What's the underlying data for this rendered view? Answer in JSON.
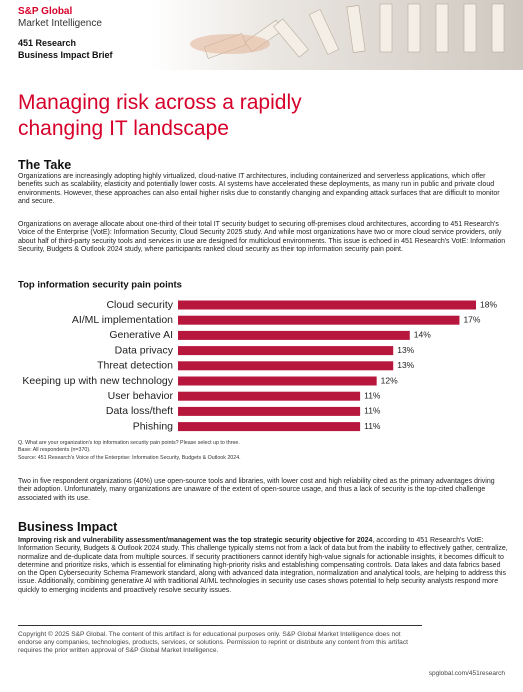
{
  "header": {
    "brand": "S&P Global",
    "division": "Market Intelligence",
    "unit": "451 Research",
    "doc_type": "Business Impact Brief"
  },
  "title": "Managing risk across a rapidly changing IT landscape",
  "the_take": {
    "heading": "The Take",
    "paragraphs": [
      "Organizations are increasingly adopting highly virtualized, cloud-native IT architectures, including containerized and serverless applications, which offer benefits such as scalability, elasticity and potentially lower costs. AI systems have accelerated these deployments, as many run in public and private cloud environments. However, these approaches can also entail higher risks due to constantly changing and expanding attack surfaces that are difficult to monitor and secure.",
      "Organizations on average allocate about one-third of their total IT security budget to securing off-premises cloud architectures, according to 451 Research's Voice of the Enterprise (VotE): Information Security, Cloud Security 2025 study. And while most organizations have two or more cloud service providers, only about half of third-party security tools and services in use are designed for multicloud environments. This issue is echoed in 451 Research's VotE: Information Security, Budgets & Outlook 2024 study, where participants ranked cloud security as their top information security pain point."
    ]
  },
  "chart_data": {
    "type": "bar",
    "orientation": "horizontal",
    "title": "Top information security pain points",
    "categories": [
      "Cloud security",
      "AI/ML implementation",
      "Generative AI",
      "Data privacy",
      "Threat detection",
      "Keeping up with new technology",
      "User behavior",
      "Data loss/theft",
      "Phishing"
    ],
    "values": [
      18,
      17,
      14,
      13,
      13,
      12,
      11,
      11,
      11
    ],
    "value_labels": [
      "18%",
      "17%",
      "14%",
      "13%",
      "13%",
      "12%",
      "11%",
      "11%",
      "11%"
    ],
    "color": "#b8173d",
    "notes": [
      "Q. What are your organization's top information security pain points? Please select up to three.",
      "Base: All respondents (n=370).",
      "Source: 451 Research's Voice of the Enterprise: Information Security, Budgets & Outlook 2024."
    ]
  },
  "after_chart": "Two in five respondent organizations (40%) use open-source tools and libraries, with lower cost and high reliability cited as the primary advantages driving their adoption. Unfortunately, many organizations are unaware of the extent of open-source usage, and thus a lack of security is the top-cited challenge associated with its use.",
  "business_impact": {
    "heading": "Business Impact",
    "lead": "Improving risk and vulnerability assessment/management was the top strategic security objective for 2024",
    "text": ", according to 451 Research's VotE: Information Security, Budgets & Outlook 2024 study. This challenge typically stems not from a lack of data but from the inability to effectively gather, centralize, normalize and de-duplicate data from multiple sources. If security practitioners cannot identify high-value signals for actionable insights, it becomes difficult to determine and prioritize risks, which is essential for eliminating high-priority risks and establishing compensating controls. Data lakes and data fabrics based on the Open Cybersecurity Schema Framework standard, along with advanced data integration, normalization and analytical tools, are helping to address this issue. Additionally, combining generative AI with traditional AI/ML technologies in security use cases shows potential to help security analysts respond more quickly to emerging incidents and proactively resolve security issues."
  },
  "footer": {
    "copyright": "Copyright © 2025 S&P Global. The content of this artifact is for educational purposes only. S&P Global Market Intelligence does not endorse any companies, technologies, products, services, or solutions. Permission to reprint or distribute any content from this artifact requires the prior written approval of S&P Global Market Intelligence.",
    "url": "spglobal.com/451research"
  }
}
